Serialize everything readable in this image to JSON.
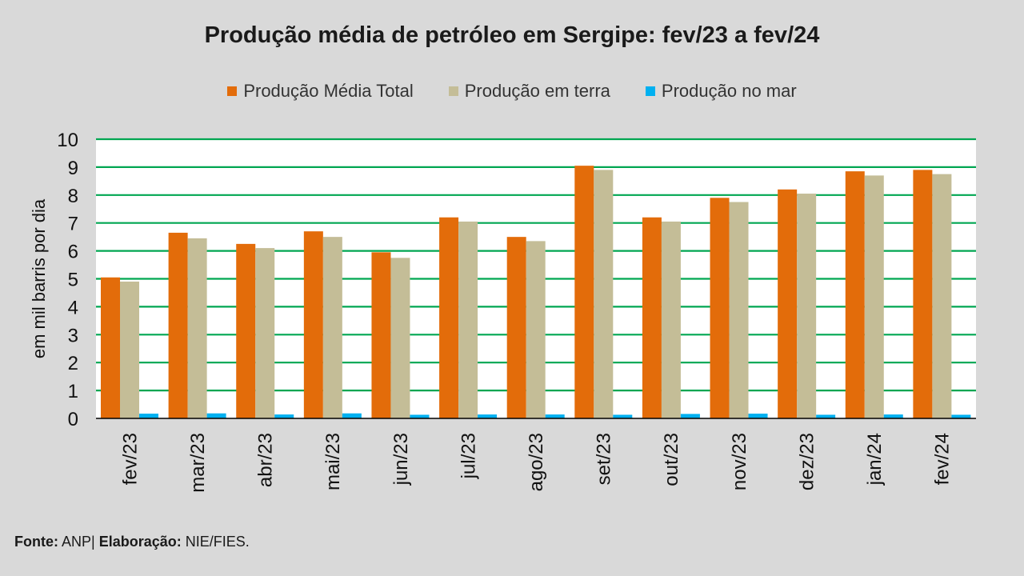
{
  "chart_data": {
    "type": "bar",
    "title": "Produção média de petróleo em Sergipe: fev/23 a fev/24",
    "ylabel": "em mil barris por dia",
    "xlabel": "",
    "ylim": [
      0,
      10
    ],
    "yticks": [
      "0",
      "1",
      "2",
      "3",
      "4",
      "5",
      "6",
      "7",
      "8",
      "9",
      "10"
    ],
    "grid": true,
    "legend_position": "top",
    "categories": [
      "fev/23",
      "mar/23",
      "abr/23",
      "mai/23",
      "jun/23",
      "jul/23",
      "ago/23",
      "set/23",
      "out/23",
      "nov/23",
      "dez/23",
      "jan/24",
      "fev/24"
    ],
    "series": [
      {
        "name": "Produção Média Total",
        "color": "#e36c0a",
        "values": [
          5.05,
          6.65,
          6.25,
          6.7,
          5.95,
          7.2,
          6.5,
          9.05,
          7.2,
          7.9,
          8.2,
          8.85,
          8.9
        ]
      },
      {
        "name": "Produção em terra",
        "color": "#c4bd97",
        "values": [
          4.9,
          6.45,
          6.1,
          6.5,
          5.75,
          7.05,
          6.35,
          8.9,
          7.05,
          7.75,
          8.05,
          8.7,
          8.75
        ]
      },
      {
        "name": "Produção no mar",
        "color": "#00b0f0",
        "values": [
          0.17,
          0.18,
          0.14,
          0.18,
          0.13,
          0.14,
          0.14,
          0.13,
          0.16,
          0.17,
          0.13,
          0.14,
          0.13
        ]
      }
    ]
  },
  "footer": {
    "fonte_label": "Fonte:",
    "fonte_value": " ANP| ",
    "elaboracao_label": "Elaboração:",
    "elaboracao_value": " NIE/FIES."
  },
  "colors": {
    "background": "#d9d9d9",
    "plot_background": "#ffffff",
    "gridline": "#00a651",
    "axis": "#000000"
  }
}
